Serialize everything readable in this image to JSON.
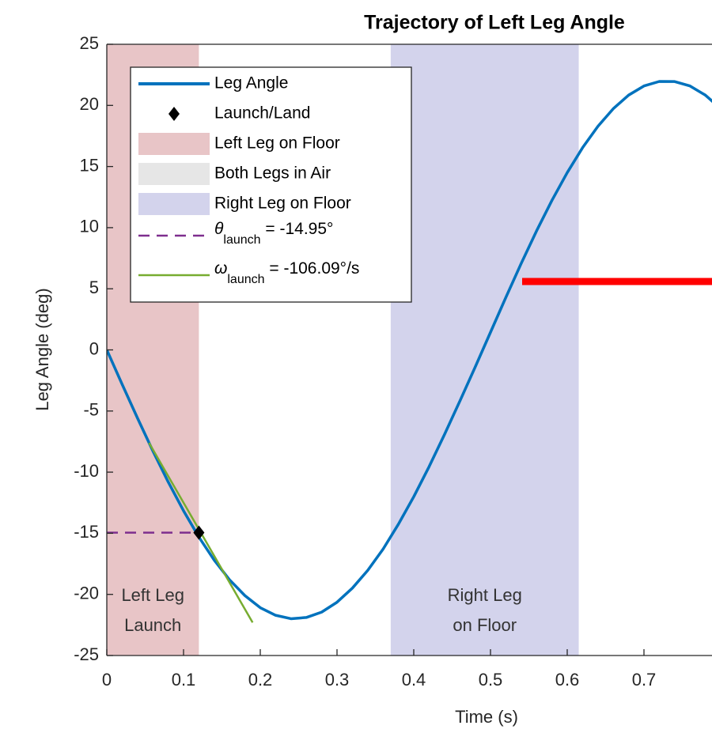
{
  "chart_data": {
    "type": "line",
    "title": "Trajectory of Left Leg Angle",
    "xlabel": "Time (s)",
    "ylabel": "Leg Angle (deg)",
    "xlim": [
      0,
      0.8
    ],
    "ylim": [
      -25,
      25
    ],
    "xticks": [
      0,
      0.1,
      0.2,
      0.3,
      0.4,
      0.5,
      0.6,
      0.7
    ],
    "yticks": [
      -25,
      -20,
      -15,
      -10,
      -5,
      0,
      5,
      10,
      15,
      20,
      25
    ],
    "x": [
      0,
      0.02,
      0.04,
      0.06,
      0.08,
      0.1,
      0.12,
      0.14,
      0.16,
      0.18,
      0.2,
      0.22,
      0.24,
      0.26,
      0.28,
      0.3,
      0.32,
      0.34,
      0.36,
      0.38,
      0.4,
      0.42,
      0.44,
      0.46,
      0.48,
      0.5,
      0.52,
      0.54,
      0.56,
      0.58,
      0.6,
      0.62,
      0.64,
      0.66,
      0.68,
      0.7,
      0.72,
      0.74,
      0.76,
      0.78,
      0.8
    ],
    "series": [
      {
        "name": "Leg Angle",
        "color": "#0072bd",
        "values": [
          0,
          -2.82,
          -5.58,
          -8.26,
          -10.8,
          -13.16,
          -15.31,
          -17.2,
          -18.81,
          -20.1,
          -21.09,
          -21.71,
          -21.99,
          -21.89,
          -21.45,
          -20.64,
          -19.49,
          -18.04,
          -16.3,
          -14.26,
          -12.01,
          -9.55,
          -6.93,
          -4.2,
          -1.41,
          1.44,
          4.29,
          7.07,
          9.73,
          12.22,
          14.5,
          16.54,
          18.29,
          19.73,
          20.84,
          21.59,
          21.96,
          21.95,
          21.59,
          20.84,
          19.73
        ]
      }
    ],
    "marker": {
      "name": "Launch/Land",
      "color": "#000000",
      "x": 0.12,
      "y": -14.95
    },
    "regions": [
      {
        "name": "Left Leg on Floor",
        "color": "#e8c5c7",
        "x": [
          0,
          0.12
        ],
        "annotation": [
          "Left Leg",
          "Launch"
        ]
      },
      {
        "name": "Both Legs in Air",
        "color": "#e6e6e6"
      },
      {
        "name": "Right Leg on Floor",
        "color": "#d3d3ec",
        "x": [
          0.37,
          0.615
        ],
        "annotation": [
          "Right Leg",
          "on Floor"
        ]
      }
    ],
    "theta_launch": {
      "symbol": "θ",
      "sub": "launch",
      "label": " = -14.95°",
      "value": -14.95,
      "color": "#7e2f8e",
      "x": [
        0,
        0.12
      ]
    },
    "omega_launch": {
      "symbol": "ω",
      "sub": "launch",
      "label": " = -106.09°/s",
      "value": -106.09,
      "color": "#77ac30",
      "x": [
        0.055,
        0.19
      ],
      "y": [
        -7.6,
        -22.3
      ]
    }
  }
}
